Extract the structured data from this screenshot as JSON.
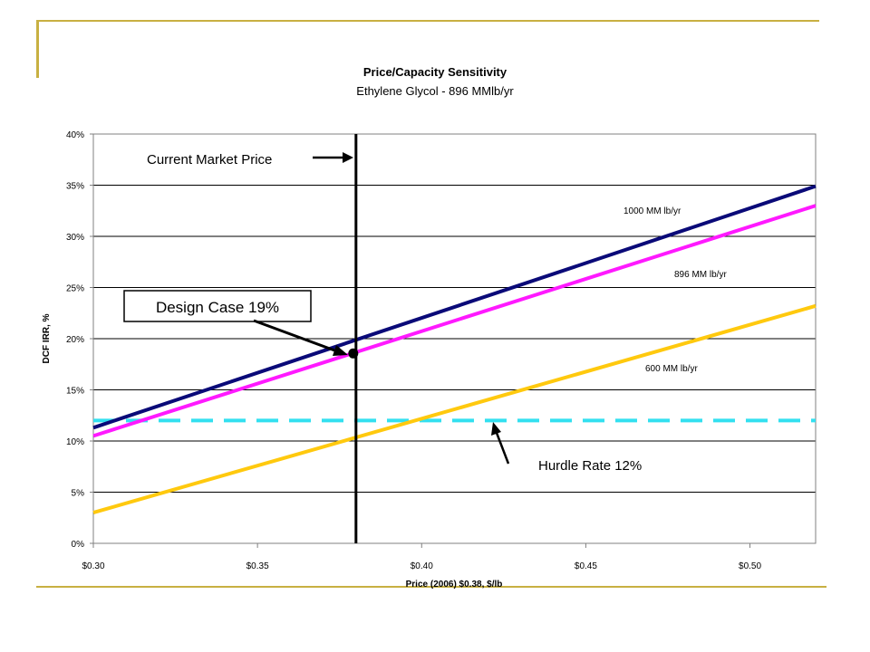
{
  "slide_decor_color": "#c8b042",
  "chart_data": {
    "type": "line",
    "title": "Price/Capacity Sensitivity",
    "subtitle": "Ethylene Glycol - 896 MMlb/yr",
    "xlabel": "Price (2006) $0.38, $/lb",
    "ylabel": "DCF IRR, %",
    "xlim": [
      0.3,
      0.52
    ],
    "ylim": [
      0,
      40
    ],
    "xticks": [
      0.3,
      0.35,
      0.4,
      0.45,
      0.5
    ],
    "xtick_labels": [
      "$0.30",
      "$0.35",
      "$0.40",
      "$0.45",
      "$0.50"
    ],
    "yticks": [
      0,
      5,
      10,
      15,
      20,
      25,
      30,
      35,
      40
    ],
    "ytick_labels": [
      "0%",
      "5%",
      "10%",
      "15%",
      "20%",
      "25%",
      "30%",
      "35%",
      "40%"
    ],
    "grid": "horizontal",
    "series": [
      {
        "name": "1000 MM lb/yr",
        "color": "#0a0a78",
        "x": [
          0.3,
          0.52
        ],
        "y": [
          11.3,
          34.9
        ]
      },
      {
        "name": "896 MM lb/yr",
        "color": "#ff19ff",
        "x": [
          0.3,
          0.52
        ],
        "y": [
          10.5,
          33.0
        ]
      },
      {
        "name": "600 MM lb/yr",
        "color": "#ffc90e",
        "x": [
          0.3,
          0.52
        ],
        "y": [
          3.0,
          23.2
        ]
      }
    ],
    "hurdle_rate": {
      "y": 12,
      "color": "#33e0f0"
    },
    "market_price_x": 0.38,
    "design_point": {
      "x": 0.38,
      "y": 19
    },
    "annotations": {
      "current_market_price": "Current Market Price",
      "design_case": "Design Case 19%",
      "hurdle_rate": "Hurdle Rate 12%"
    }
  }
}
